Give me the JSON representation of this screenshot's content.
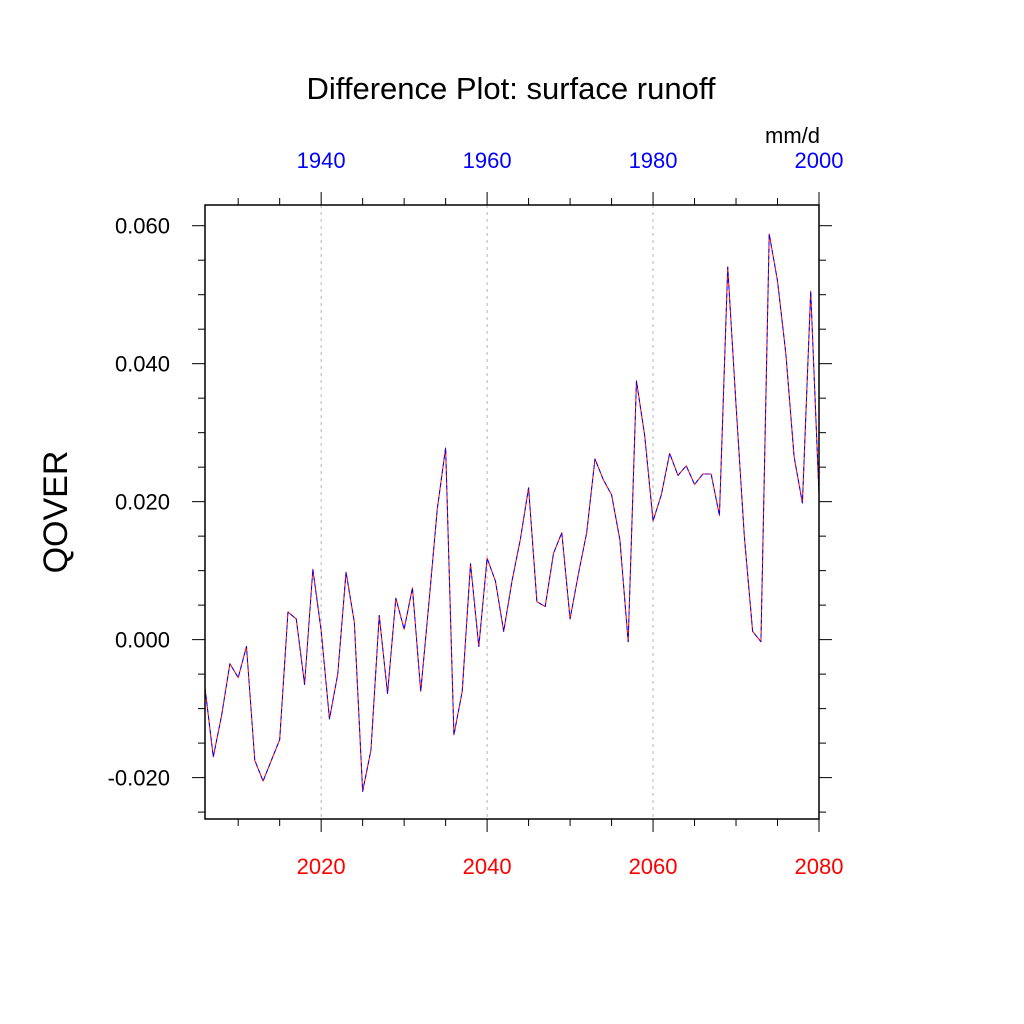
{
  "chart_data": {
    "type": "line",
    "title": "Difference Plot: surface runoff",
    "ylabel": "QOVER",
    "units": "mm/d",
    "ylim": [
      -0.026,
      0.063
    ],
    "yticks": [
      -0.02,
      0.0,
      0.02,
      0.04,
      0.06
    ],
    "ytick_labels": [
      "-0.020",
      "0.000",
      "0.020",
      "0.040",
      "0.060"
    ],
    "x_bottom": {
      "range": [
        2006,
        2080
      ],
      "ticks": [
        2020,
        2040,
        2060,
        2080
      ],
      "tick_labels": [
        "2020",
        "2040",
        "2060",
        "2080"
      ],
      "color": "#ff0000"
    },
    "x_top": {
      "range": [
        1926,
        2000
      ],
      "ticks": [
        1940,
        1960,
        1980,
        2000
      ],
      "tick_labels": [
        "1940",
        "1960",
        "1980",
        "2000"
      ],
      "color": "#0000ff"
    },
    "gridlines_x": [
      2020,
      2040,
      2060
    ],
    "series": [
      {
        "color": "#ff0000",
        "style": "solid",
        "x": [
          2006,
          2007,
          2008,
          2009,
          2010,
          2011,
          2012,
          2013,
          2014,
          2015,
          2016,
          2017,
          2018,
          2019,
          2020,
          2021,
          2022,
          2023,
          2024,
          2025,
          2026,
          2027,
          2028,
          2029,
          2030,
          2031,
          2032,
          2033,
          2034,
          2035,
          2036,
          2037,
          2038,
          2039,
          2040,
          2041,
          2042,
          2043,
          2044,
          2045,
          2046,
          2047,
          2048,
          2049,
          2050,
          2051,
          2052,
          2053,
          2054,
          2055,
          2056,
          2057,
          2058,
          2059,
          2060,
          2061,
          2062,
          2063,
          2064,
          2065,
          2066,
          2067,
          2068,
          2069,
          2070,
          2071,
          2072,
          2073,
          2074,
          2075,
          2076,
          2077,
          2078,
          2079,
          2080
        ],
        "values": [
          -0.007,
          -0.017,
          -0.011,
          -0.0035,
          -0.0055,
          -0.001,
          -0.0175,
          -0.0205,
          -0.0175,
          -0.0145,
          0.004,
          0.003,
          -0.0065,
          0.0102,
          0.0013,
          -0.0115,
          -0.005,
          0.0098,
          0.0025,
          -0.022,
          -0.016,
          0.0035,
          -0.0078,
          0.006,
          0.0015,
          0.0075,
          -0.0075,
          0.0055,
          0.019,
          0.0278,
          -0.0138,
          -0.0075,
          0.011,
          -0.001,
          0.0118,
          0.0085,
          0.0012,
          0.0085,
          0.0145,
          0.022,
          0.0055,
          0.0048,
          0.0125,
          0.0155,
          0.003,
          0.0095,
          0.0155,
          0.0262,
          0.0232,
          0.021,
          0.0145,
          -0.0003,
          0.0375,
          0.0295,
          0.0172,
          0.021,
          0.027,
          0.0238,
          0.0252,
          0.0225,
          0.024,
          0.024,
          0.018,
          0.054,
          0.034,
          0.015,
          0.0012,
          -0.0003,
          0.0588,
          0.052,
          0.0415,
          0.0265,
          0.0198,
          0.0505,
          0.021
        ]
      },
      {
        "color": "#0000ff",
        "style": "dashed",
        "x": [
          2006,
          2007,
          2008,
          2009,
          2010,
          2011,
          2012,
          2013,
          2014,
          2015,
          2016,
          2017,
          2018,
          2019,
          2020,
          2021,
          2022,
          2023,
          2024,
          2025,
          2026,
          2027,
          2028,
          2029,
          2030,
          2031,
          2032,
          2033,
          2034,
          2035,
          2036,
          2037,
          2038,
          2039,
          2040,
          2041,
          2042,
          2043,
          2044,
          2045,
          2046,
          2047,
          2048,
          2049,
          2050,
          2051,
          2052,
          2053,
          2054,
          2055,
          2056,
          2057,
          2058,
          2059,
          2060,
          2061,
          2062,
          2063,
          2064,
          2065,
          2066,
          2067,
          2068,
          2069,
          2070,
          2071,
          2072,
          2073,
          2074,
          2075,
          2076,
          2077,
          2078,
          2079,
          2080
        ],
        "values": [
          -0.007,
          -0.017,
          -0.011,
          -0.0035,
          -0.0055,
          -0.001,
          -0.0175,
          -0.0205,
          -0.0175,
          -0.0145,
          0.004,
          0.003,
          -0.0065,
          0.0102,
          0.0013,
          -0.0115,
          -0.005,
          0.0098,
          0.0025,
          -0.022,
          -0.016,
          0.0035,
          -0.0078,
          0.006,
          0.0015,
          0.0075,
          -0.0075,
          0.0055,
          0.019,
          0.0278,
          -0.0138,
          -0.0075,
          0.011,
          -0.001,
          0.0118,
          0.0085,
          0.0012,
          0.0085,
          0.0145,
          0.022,
          0.0055,
          0.0048,
          0.0125,
          0.0155,
          0.003,
          0.0095,
          0.0155,
          0.0262,
          0.0232,
          0.021,
          0.0145,
          -0.0003,
          0.0375,
          0.0295,
          0.0172,
          0.021,
          0.027,
          0.0238,
          0.0252,
          0.0225,
          0.024,
          0.024,
          0.018,
          0.054,
          0.034,
          0.015,
          0.0012,
          -0.0003,
          0.0588,
          0.052,
          0.0415,
          0.0265,
          0.0198,
          0.0505,
          0.021
        ]
      }
    ]
  }
}
